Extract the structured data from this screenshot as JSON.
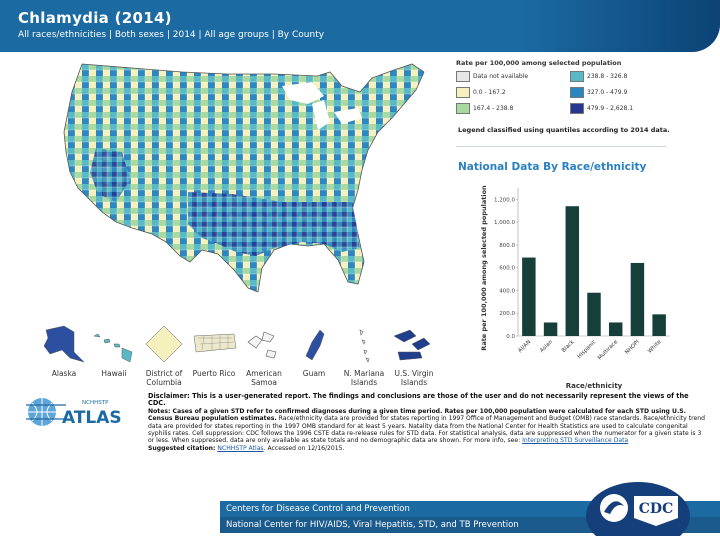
{
  "header": {
    "title": "Chlamydia (2014)",
    "subtitle": "All races/ethnicities  |  Both sexes  |  2014  |  All age groups  |  By County"
  },
  "legend": {
    "title": "Rate per 100,000 among selected population",
    "items": [
      {
        "label": "Data not available",
        "color": "#e7e7e7"
      },
      {
        "label": "0.0 - 167.2",
        "color": "#f5f1bf"
      },
      {
        "label": "167.4 - 238.8",
        "color": "#a9d8a0"
      },
      {
        "label": "238.8 - 326.8",
        "color": "#59b9c6"
      },
      {
        "label": "327.0 - 479.9",
        "color": "#2c86bf"
      },
      {
        "label": "479.9 - 2,628.1",
        "color": "#253690"
      }
    ],
    "note": "Legend classified using quantiles according to 2014 data."
  },
  "insets": [
    "Alaska",
    "Hawaii",
    "District of Columbia",
    "Puerto Rico",
    "American Samoa",
    "Guam",
    "N. Mariana Islands",
    "U.S. Virgin Islands"
  ],
  "chart_data": {
    "type": "bar",
    "title": "National Data By Race/ethnicity",
    "xlabel": "Race/ethnicity",
    "ylabel": "Rate per 100,000 among selected population",
    "categories": [
      "AI/AN",
      "Asian",
      "Black",
      "Hispanic",
      "Multirace",
      "NHOPI",
      "White"
    ],
    "values": [
      689.1,
      118.7,
      1140.0,
      380.1,
      118.9,
      641.5,
      190.2
    ],
    "ylim": [
      0,
      1300
    ],
    "yticks": [
      "1,200.0",
      "1,000.0",
      "800.0",
      "600.0",
      "400.0",
      "200.0",
      "0.0"
    ],
    "ytick_values": [
      1200,
      1000,
      800,
      600,
      400,
      200,
      0
    ],
    "bar_color": "#163f3a",
    "grid": false
  },
  "atlas_logo": {
    "small": "NCHHSTP",
    "big": "ATLAS"
  },
  "disclaimer": {
    "line1_bold": "Disclaimer:",
    "line1": " This is a user-generated report. The findings and conclusions are those of the user and do not necessarily represent the views of the CDC.",
    "notes_bold": "Notes:",
    "notes_bold_rest": " Cases of a given STD refer to confirmed diagnoses during a given time period. Rates per 100,000 population were calculated for each STD using U.S. Census Bureau population estimates.",
    "notes_rest": " Race/ethnicity data are provided for states reporting in 1997 Office of Management and Budget (OMB) race standards. Race/ethnicity trend data are provided for states reporting in the 1997 OMB standard for at least 5 years. Natality data from the National Center for Health Statistics are used to calculate congenital syphilis rates. Cell suppression: CDC follows the 1996 CSTE data re-release rules for STD data. For statistical analysis, data are suppressed when the numerator for a given state is 3 or less. When suppressed, data are only available as state totals and no demographic data are shown. For more info, see:",
    "notes_link": "Interpreting STD Surveillance Data",
    "citation_bold": "Suggested citation:",
    "citation_link": "NCHHSTP Atlas",
    "citation_rest": ". Accessed on 12/16/2015."
  },
  "footer": {
    "line1": "Centers for Disease Control and Prevention",
    "line2": "National Center for HIV/AIDS, Viral Hepatitis, STD, and TB Prevention",
    "badge": "CDC"
  }
}
